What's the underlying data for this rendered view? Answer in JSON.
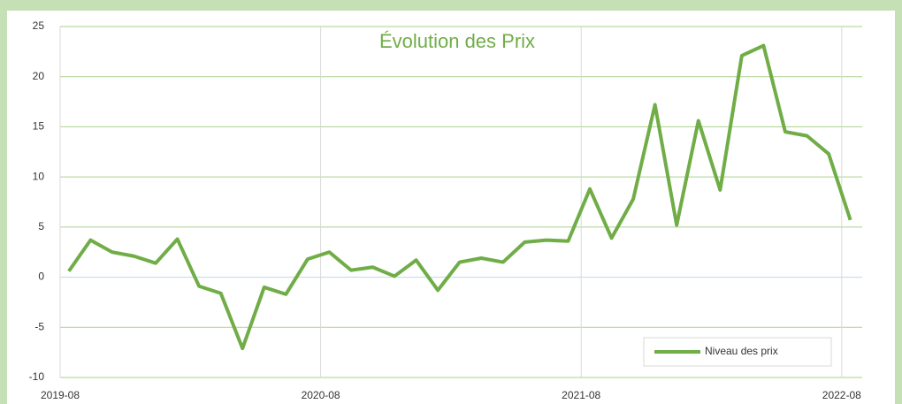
{
  "chart_data": {
    "type": "line",
    "title": "Évolution des Prix",
    "x": [
      "2019-08",
      "2019-09",
      "2019-10",
      "2019-11",
      "2019-12",
      "2020-01",
      "2020-02",
      "2020-03",
      "2020-04",
      "2020-05",
      "2020-06",
      "2020-07",
      "2020-08",
      "2020-09",
      "2020-10",
      "2020-11",
      "2020-12",
      "2021-01",
      "2021-02",
      "2021-03",
      "2021-04",
      "2021-05",
      "2021-06",
      "2021-07",
      "2021-08",
      "2021-09",
      "2021-10",
      "2021-11",
      "2021-12",
      "2022-01",
      "2022-02",
      "2022-03",
      "2022-04",
      "2022-05",
      "2022-06",
      "2022-07",
      "2022-08"
    ],
    "series": [
      {
        "name": "Niveau des prix",
        "color": "#70ad47",
        "values": [
          0.6,
          3.7,
          2.5,
          2.1,
          1.4,
          3.8,
          -0.9,
          -1.6,
          -7.1,
          -1.0,
          -1.7,
          1.8,
          2.5,
          0.7,
          1.0,
          0.1,
          1.7,
          -1.3,
          1.5,
          1.9,
          1.5,
          3.5,
          3.7,
          3.6,
          8.8,
          3.9,
          7.8,
          17.2,
          5.2,
          15.6,
          8.7,
          22.1,
          23.1,
          14.5,
          14.1,
          12.3,
          5.7
        ]
      }
    ],
    "ylim": [
      -10,
      25
    ],
    "yticks": [
      -10,
      -5,
      0,
      5,
      10,
      15,
      20,
      25
    ],
    "xticks": [
      "2019-08",
      "2020-08",
      "2021-08",
      "2022-08"
    ],
    "grid": true,
    "legend": "lower right"
  }
}
